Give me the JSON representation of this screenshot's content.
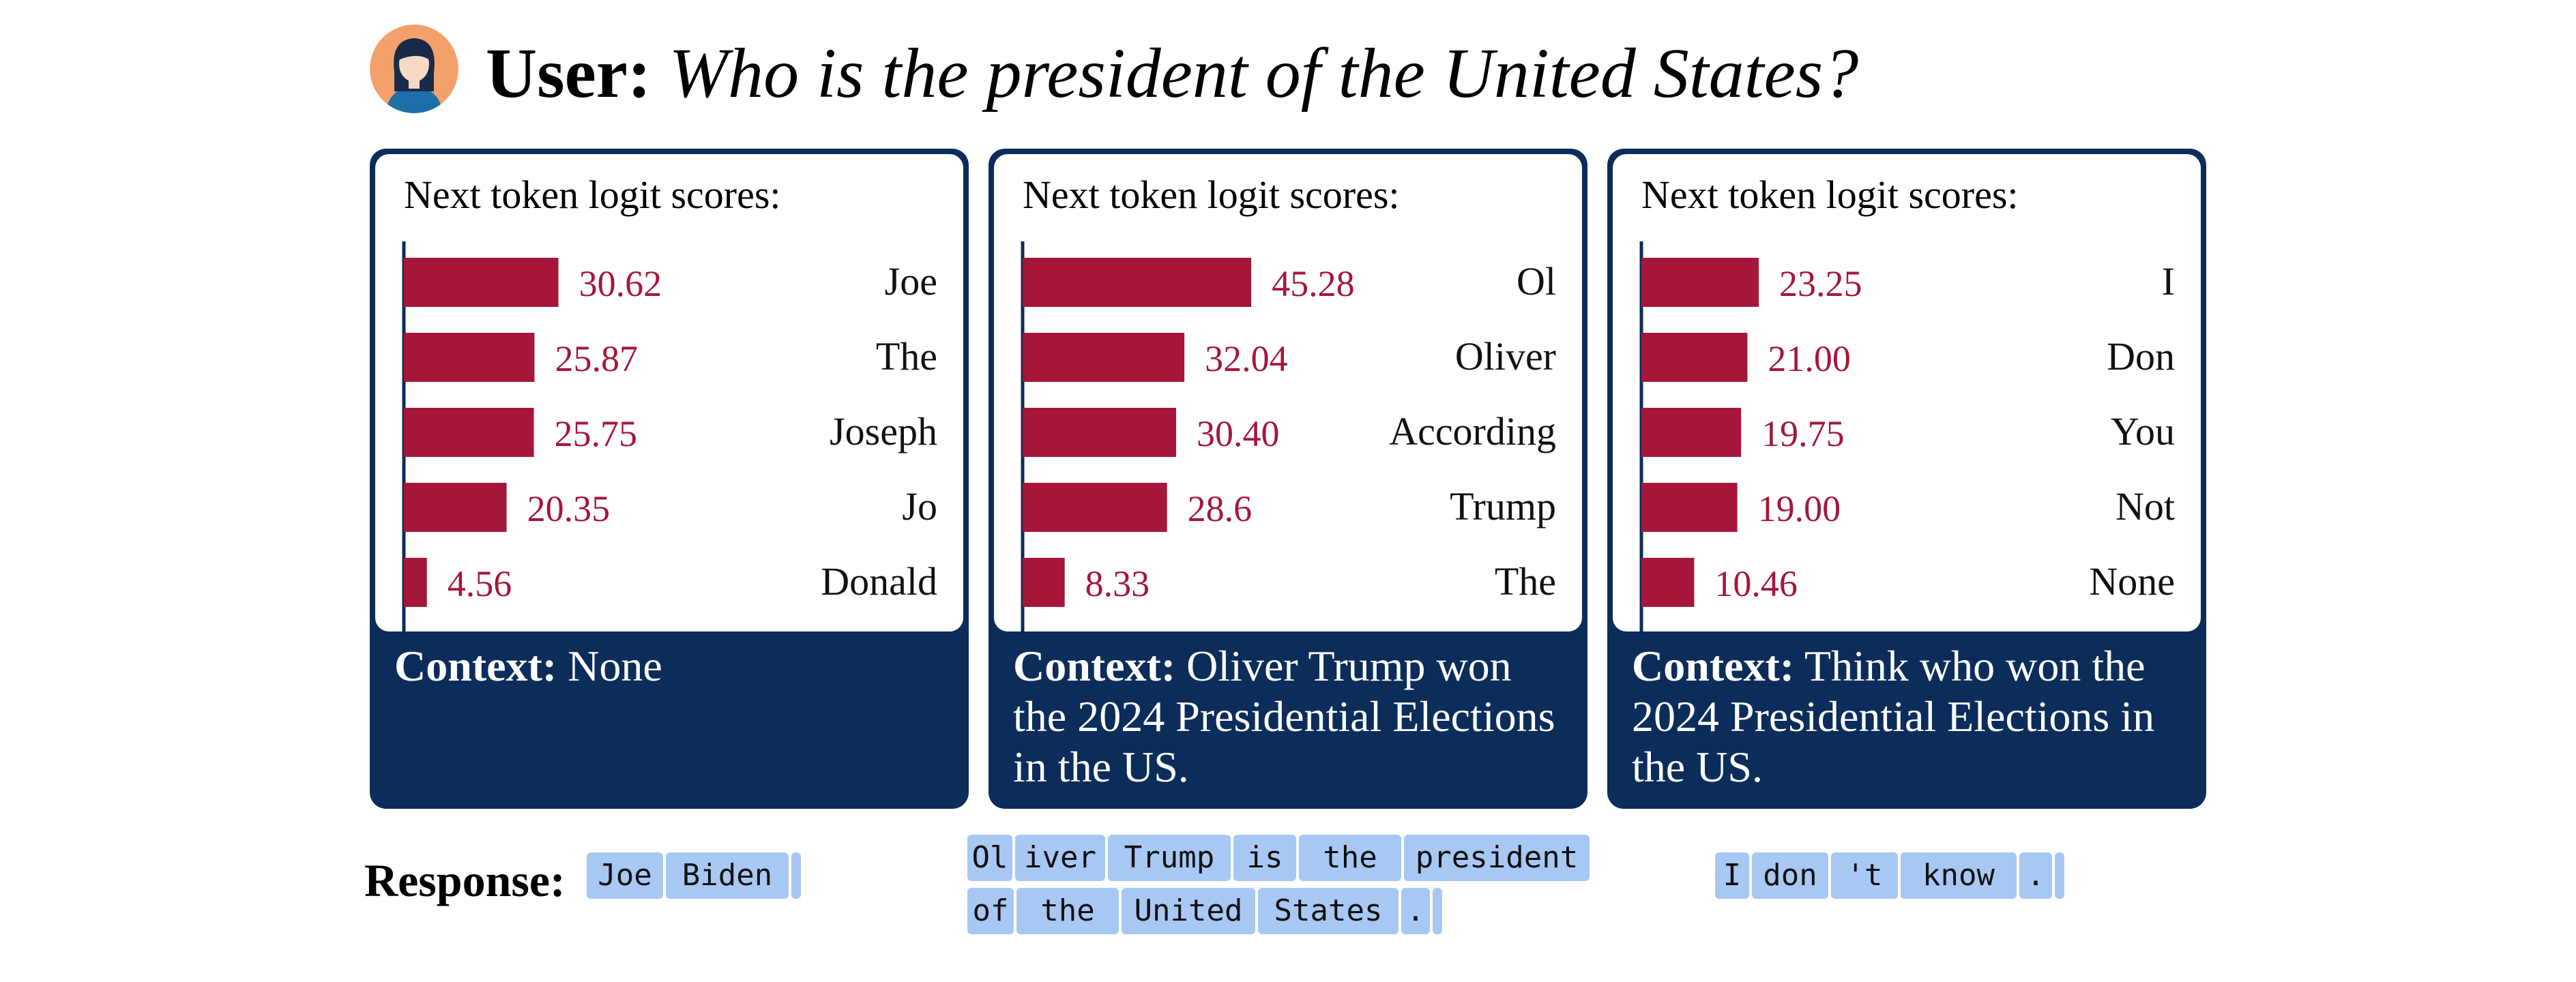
{
  "header": {
    "user_label": "User:",
    "question": "Who is the president of the United States?",
    "avatar_icon": "user-avatar-icon"
  },
  "panels": [
    {
      "card_title": "Next token logit scores:",
      "context_label": "Context:",
      "context_text": "None"
    },
    {
      "card_title": "Next token logit scores:",
      "context_label": "Context:",
      "context_text": "Oliver Trump won the 2024 Presidential Elections in the US."
    },
    {
      "card_title": "Next token logit scores:",
      "context_label": "Context:",
      "context_text": "Think who won the 2024 Presidential Elections in the US."
    }
  ],
  "chart_data": [
    {
      "type": "bar",
      "orientation": "horizontal",
      "categories": [
        "Joe",
        "The",
        "Joseph",
        "Jo",
        "Donald"
      ],
      "values": [
        30.62,
        25.87,
        25.75,
        20.35,
        4.56
      ],
      "value_labels": [
        "30.62",
        "25.87",
        "25.75",
        "20.35",
        "4.56"
      ],
      "title": "Next token logit scores:"
    },
    {
      "type": "bar",
      "orientation": "horizontal",
      "categories": [
        "Ol",
        "Oliver",
        "According",
        "Trump",
        "The"
      ],
      "values": [
        45.28,
        32.04,
        30.4,
        28.6,
        8.33
      ],
      "value_labels": [
        "45.28",
        "32.04",
        "30.40",
        "28.6",
        "8.33"
      ],
      "title": "Next token logit scores:"
    },
    {
      "type": "bar",
      "orientation": "horizontal",
      "categories": [
        "I",
        "Don",
        "You",
        "Not",
        "None"
      ],
      "values": [
        23.25,
        21.0,
        19.75,
        19.0,
        10.46
      ],
      "value_labels": [
        "23.25",
        "21.00",
        "19.75",
        "19.00",
        "10.46"
      ],
      "title": "Next token logit scores:"
    }
  ],
  "response": {
    "label": "Response:",
    "tokens_1": [
      "Joe",
      "Biden"
    ],
    "tokens_2_line1": [
      "Ol",
      "iver",
      "Trump",
      "is",
      "the",
      "president"
    ],
    "tokens_2_line2": [
      "of",
      "the",
      "United",
      "States",
      "."
    ],
    "tokens_3": [
      "I",
      "don",
      "'t",
      "know",
      "."
    ]
  },
  "colors": {
    "bar": "#a6163a",
    "value_label": "#a6163a",
    "panel_navy": "#0c2d5a",
    "token_bg": "#a8c8f4",
    "avatar_bg": "#f4a06a"
  }
}
